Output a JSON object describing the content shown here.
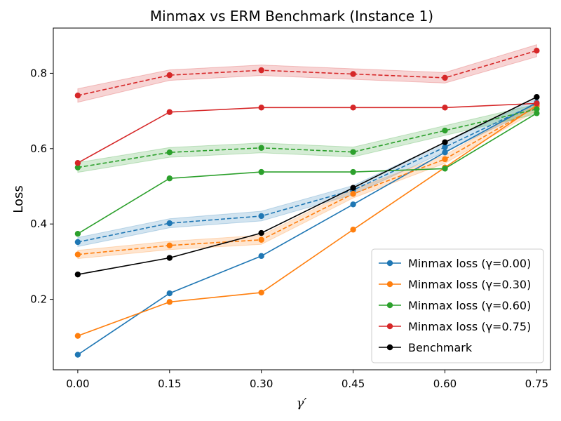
{
  "chart_data": {
    "type": "line",
    "title": "Minmax vs ERM Benchmark (Instance 1)",
    "xlabel": "γ′",
    "ylabel": "Loss",
    "xlim": [
      -0.04,
      0.7725
    ],
    "ylim": [
      0.013,
      0.92
    ],
    "x": [
      0.0,
      0.15,
      0.3,
      0.45,
      0.6,
      0.75
    ],
    "xticks": [
      "0.00",
      "0.15",
      "0.30",
      "0.45",
      "0.60",
      "0.75"
    ],
    "yticks": [
      0.2,
      0.4,
      0.6,
      0.8
    ],
    "ytick_labels": [
      "0.2",
      "0.4",
      "0.6",
      "0.8"
    ],
    "legend_position": "lower-right",
    "series": [
      {
        "name": "Minmax loss (γ=0.00)",
        "color": "#1f77b4",
        "solid": [
          0.053,
          0.216,
          0.315,
          0.452,
          0.59,
          0.722
        ],
        "dashed": [
          0.352,
          0.402,
          0.421,
          0.49,
          0.604,
          0.72
        ],
        "band": [
          0.012,
          0.012,
          0.013,
          0.012,
          0.012,
          0.012
        ]
      },
      {
        "name": "Minmax loss (γ=0.30)",
        "color": "#ff7f0e",
        "solid": [
          0.103,
          0.193,
          0.218,
          0.385,
          0.55,
          0.715
        ],
        "dashed": [
          0.319,
          0.343,
          0.358,
          0.48,
          0.572,
          0.712
        ],
        "band": [
          0.011,
          0.011,
          0.012,
          0.011,
          0.011,
          0.011
        ]
      },
      {
        "name": "Minmax loss (γ=0.60)",
        "color": "#2ca02c",
        "solid": [
          0.374,
          0.521,
          0.538,
          0.538,
          0.547,
          0.694
        ],
        "dashed": [
          0.55,
          0.59,
          0.602,
          0.591,
          0.648,
          0.705
        ],
        "band": [
          0.013,
          0.013,
          0.013,
          0.013,
          0.013,
          0.013
        ]
      },
      {
        "name": "Minmax loss (γ=0.75)",
        "color": "#d62728",
        "solid": [
          0.562,
          0.697,
          0.709,
          0.709,
          0.709,
          0.72
        ],
        "dashed": [
          0.741,
          0.795,
          0.808,
          0.798,
          0.788,
          0.86
        ],
        "band": [
          0.018,
          0.014,
          0.014,
          0.014,
          0.014,
          0.016
        ]
      },
      {
        "name": "Benchmark",
        "color": "#000000",
        "solid": [
          0.266,
          0.31,
          0.376,
          0.496,
          0.617,
          0.737
        ]
      }
    ]
  }
}
